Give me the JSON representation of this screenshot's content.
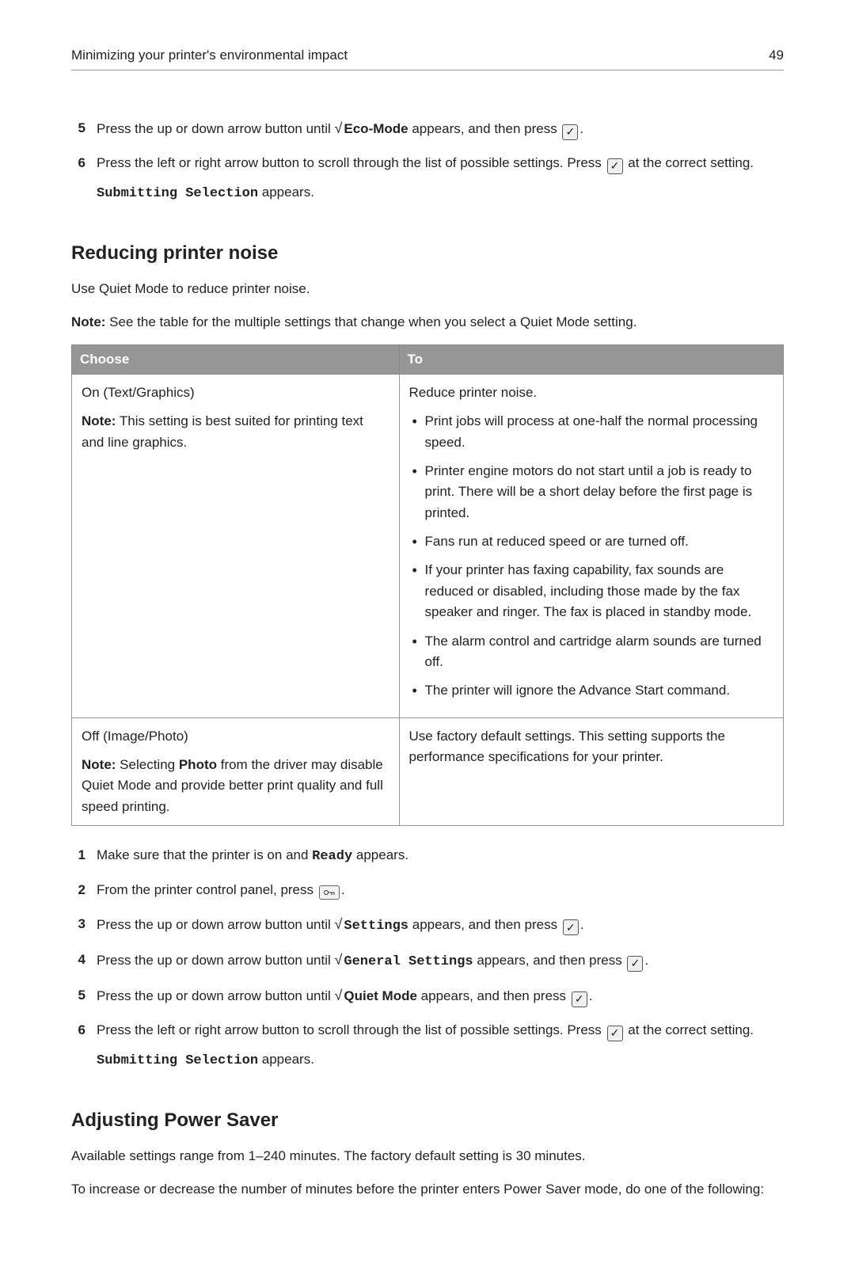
{
  "header": {
    "title": "Minimizing your printer's environmental impact",
    "page_num": "49"
  },
  "steps_top": [
    {
      "num": "5",
      "body": [
        {
          "t": "text",
          "v": "Press the up or down arrow button until "
        },
        {
          "t": "sqrt",
          "v": "√"
        },
        {
          "t": "bold",
          "v": "Eco-Mode"
        },
        {
          "t": "text",
          "v": " appears, and then press "
        },
        {
          "t": "check",
          "v": "✓"
        },
        {
          "t": "text",
          "v": "."
        }
      ]
    },
    {
      "num": "6",
      "body": [
        {
          "t": "text",
          "v": "Press the left or right arrow button to scroll through the list of possible settings. Press "
        },
        {
          "t": "check",
          "v": "✓"
        },
        {
          "t": "text",
          "v": " at the correct setting."
        }
      ],
      "sub": [
        {
          "t": "mono",
          "v": "Submitting Selection"
        },
        {
          "t": "text",
          "v": " appears."
        }
      ]
    }
  ],
  "section1": {
    "heading": "Reducing printer noise",
    "intro": "Use Quiet Mode to reduce printer noise.",
    "note_label": "Note:",
    "note": " See the table for the multiple settings that change when you select a Quiet Mode setting."
  },
  "table": {
    "headers": [
      "Choose",
      "To"
    ],
    "rows": [
      {
        "choose": {
          "title": "On (Text/Graphics)",
          "note_label": "Note:",
          "note": " This setting is best suited for printing text and line graphics."
        },
        "to": {
          "lead": "Reduce printer noise.",
          "bullets": [
            "Print jobs will process at one-half the normal processing speed.",
            "Printer engine motors do not start until a job is ready to print. There will be a short delay before the first page is printed.",
            "Fans run at reduced speed or are turned off.",
            "If your printer has faxing capability, fax sounds are reduced or disabled, including those made by the fax speaker and ringer. The fax is placed in standby mode.",
            "The alarm control and cartridge alarm sounds are turned off.",
            "The printer will ignore the Advance Start command."
          ]
        }
      },
      {
        "choose": {
          "title": "Off (Image/Photo)",
          "note_pre": "Note:",
          "note_mid1": " Selecting ",
          "note_bold": "Photo",
          "note_mid2": " from the driver may disable Quiet Mode and provide better print quality and full speed printing."
        },
        "to": {
          "lead": "Use factory default settings. This setting supports the performance specifications for your printer."
        }
      }
    ]
  },
  "steps_after": [
    {
      "num": "1",
      "body": [
        {
          "t": "text",
          "v": "Make sure that the printer is on and "
        },
        {
          "t": "mono",
          "v": "Ready"
        },
        {
          "t": "text",
          "v": " appears."
        }
      ]
    },
    {
      "num": "2",
      "body": [
        {
          "t": "text",
          "v": "From the printer control panel, press "
        },
        {
          "t": "key",
          "v": "⊶"
        },
        {
          "t": "text",
          "v": "."
        }
      ]
    },
    {
      "num": "3",
      "body": [
        {
          "t": "text",
          "v": "Press the up or down arrow button until "
        },
        {
          "t": "sqrt",
          "v": "√"
        },
        {
          "t": "mono",
          "v": "Settings"
        },
        {
          "t": "text",
          "v": " appears, and then press "
        },
        {
          "t": "check",
          "v": "✓"
        },
        {
          "t": "text",
          "v": "."
        }
      ]
    },
    {
      "num": "4",
      "body": [
        {
          "t": "text",
          "v": "Press the up or down arrow button until "
        },
        {
          "t": "sqrt",
          "v": "√"
        },
        {
          "t": "mono",
          "v": "General Settings"
        },
        {
          "t": "text",
          "v": " appears, and then press "
        },
        {
          "t": "check",
          "v": "✓"
        },
        {
          "t": "text",
          "v": "."
        }
      ]
    },
    {
      "num": "5",
      "body": [
        {
          "t": "text",
          "v": "Press the up or down arrow button until "
        },
        {
          "t": "sqrt",
          "v": "√"
        },
        {
          "t": "bold",
          "v": "Quiet Mode"
        },
        {
          "t": "text",
          "v": " appears, and then press "
        },
        {
          "t": "check",
          "v": "✓"
        },
        {
          "t": "text",
          "v": "."
        }
      ]
    },
    {
      "num": "6",
      "body": [
        {
          "t": "text",
          "v": "Press the left or right arrow button to scroll through the list of possible settings. Press "
        },
        {
          "t": "check",
          "v": "✓"
        },
        {
          "t": "text",
          "v": " at the correct setting."
        }
      ],
      "sub": [
        {
          "t": "mono",
          "v": "Submitting Selection"
        },
        {
          "t": "text",
          "v": " appears."
        }
      ]
    }
  ],
  "section2": {
    "heading": "Adjusting Power Saver",
    "p1": "Available settings range from 1–240 minutes. The factory default setting is 30 minutes.",
    "p2": "To increase or decrease the number of minutes before the printer enters Power Saver mode, do one of the following:"
  }
}
